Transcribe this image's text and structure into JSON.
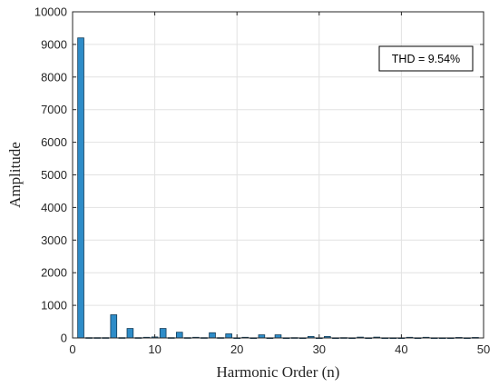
{
  "chart_data": {
    "type": "bar",
    "title": "",
    "xlabel": "Harmonic Order (n)",
    "ylabel": "Amplitude",
    "xlim": [
      0,
      50
    ],
    "ylim": [
      0,
      10000
    ],
    "xticks": [
      0,
      10,
      20,
      30,
      40,
      50
    ],
    "yticks": [
      0,
      1000,
      2000,
      3000,
      4000,
      5000,
      6000,
      7000,
      8000,
      9000,
      10000
    ],
    "grid": true,
    "bar_color": "#2E8CC8",
    "bar_edge_color": "#0F3A57",
    "annotation": "THD = 9.54%",
    "annotation_position": "top-right",
    "x": [
      1,
      2,
      3,
      4,
      5,
      6,
      7,
      8,
      9,
      10,
      11,
      12,
      13,
      14,
      15,
      16,
      17,
      18,
      19,
      20,
      21,
      22,
      23,
      24,
      25,
      26,
      27,
      28,
      29,
      30,
      31,
      32,
      33,
      34,
      35,
      36,
      37,
      38,
      39,
      40,
      41,
      42,
      43,
      44,
      45,
      46,
      47,
      48,
      49
    ],
    "values": [
      9200,
      10,
      10,
      10,
      710,
      10,
      290,
      10,
      20,
      30,
      290,
      10,
      175,
      10,
      20,
      10,
      160,
      10,
      125,
      5,
      20,
      5,
      95,
      5,
      95,
      5,
      10,
      5,
      45,
      5,
      45,
      5,
      10,
      5,
      25,
      5,
      25,
      5,
      5,
      5,
      20,
      5,
      20,
      5,
      5,
      5,
      15,
      5,
      15
    ]
  }
}
